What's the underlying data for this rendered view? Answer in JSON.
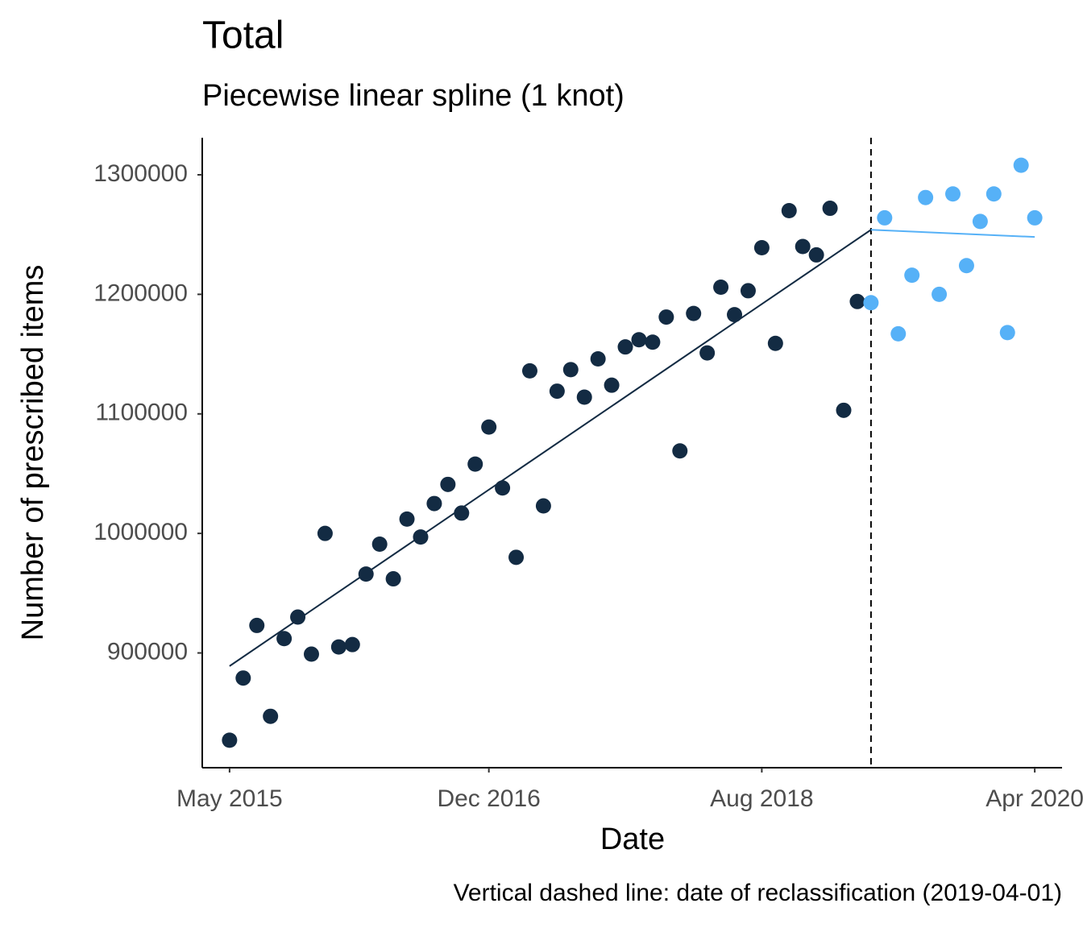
{
  "chart_data": {
    "type": "scatter",
    "title": "Total",
    "subtitle": "Piecewise linear spline (1 knot)",
    "x_label": "Date",
    "y_label": "Number of prescribed items",
    "caption": "Vertical dashed line: date of reclassification (2019-04-01)",
    "x": [
      "2015-05",
      "2015-06",
      "2015-07",
      "2015-08",
      "2015-09",
      "2015-10",
      "2015-11",
      "2015-12",
      "2016-01",
      "2016-02",
      "2016-03",
      "2016-04",
      "2016-05",
      "2016-06",
      "2016-07",
      "2016-08",
      "2016-09",
      "2016-10",
      "2016-11",
      "2016-12",
      "2017-01",
      "2017-02",
      "2017-03",
      "2017-04",
      "2017-05",
      "2017-06",
      "2017-07",
      "2017-08",
      "2017-09",
      "2017-10",
      "2017-11",
      "2017-12",
      "2018-01",
      "2018-02",
      "2018-03",
      "2018-04",
      "2018-05",
      "2018-06",
      "2018-07",
      "2018-08",
      "2018-09",
      "2018-10",
      "2018-11",
      "2018-12",
      "2019-01",
      "2019-02",
      "2019-03",
      "2019-04",
      "2019-05",
      "2019-06",
      "2019-07",
      "2019-08",
      "2019-09",
      "2019-10",
      "2019-11",
      "2019-12",
      "2020-01",
      "2020-02",
      "2020-03",
      "2020-04"
    ],
    "series": [
      {
        "color": "#132B43",
        "values": [
          827000,
          879000,
          923000,
          847000,
          912000,
          930000,
          899000,
          1000000,
          905000,
          907000,
          966000,
          991000,
          962000,
          1012000,
          997000,
          1025000,
          1041000,
          1017000,
          1058000,
          1089000,
          1038000,
          980000,
          1136000,
          1023000,
          1119000,
          1137000,
          1114000,
          1146000,
          1124000,
          1156000,
          1162000,
          1160000,
          1181000,
          1069000,
          1184000,
          1151000,
          1206000,
          1183000,
          1203000,
          1239000,
          1159000,
          1270000,
          1240000,
          1233000,
          1272000,
          1103000,
          1194000,
          null,
          null,
          null,
          null,
          null,
          null,
          null,
          null,
          null,
          null,
          null,
          null,
          null
        ]
      },
      {
        "color": "#56B1F7",
        "values": [
          null,
          null,
          null,
          null,
          null,
          null,
          null,
          null,
          null,
          null,
          null,
          null,
          null,
          null,
          null,
          null,
          null,
          null,
          null,
          null,
          null,
          null,
          null,
          null,
          null,
          null,
          null,
          null,
          null,
          null,
          null,
          null,
          null,
          null,
          null,
          null,
          null,
          null,
          null,
          null,
          null,
          null,
          null,
          null,
          null,
          null,
          null,
          1193000,
          1264000,
          1167000,
          1216000,
          1281000,
          1200000,
          1284000,
          1224000,
          1261000,
          1284000,
          1168000,
          1308000,
          1264000
        ]
      }
    ],
    "fit": [
      {
        "color": "#132B43",
        "x": [
          "2015-05",
          "2019-04"
        ],
        "values": [
          889000,
          1254000
        ]
      },
      {
        "color": "#56B1F7",
        "x": [
          "2019-04",
          "2020-04"
        ],
        "values": [
          1254000,
          1248000
        ]
      }
    ],
    "vline": "2019-04",
    "xlim": [
      "2015-03",
      "2020-06"
    ],
    "xticks": [
      {
        "value": "2015-05",
        "label": "May 2015"
      },
      {
        "value": "2016-12",
        "label": "Dec 2016"
      },
      {
        "value": "2018-08",
        "label": "Aug 2018"
      },
      {
        "value": "2020-04",
        "label": "Apr 2020"
      }
    ],
    "ylim": [
      804000,
      1331000
    ],
    "yticks": [
      900000,
      1000000,
      1100000,
      1200000,
      1300000
    ]
  }
}
